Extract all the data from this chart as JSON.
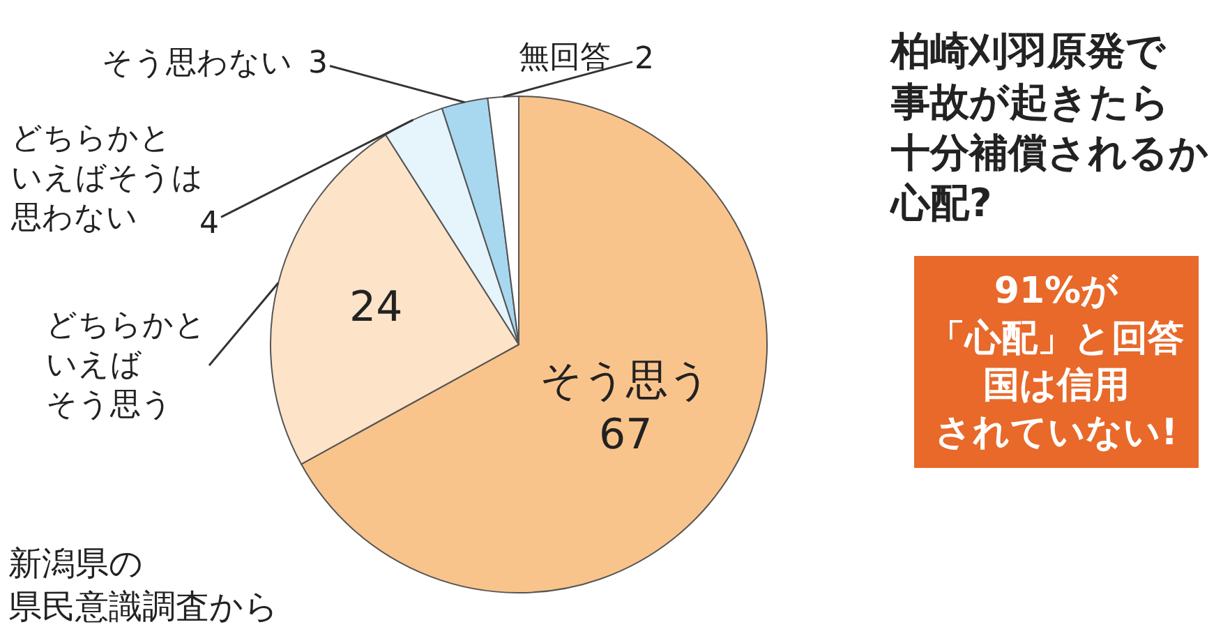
{
  "chart_data": {
    "type": "pie",
    "title": "柏崎刈羽原発で事故が起きたら十分補償されるか心配?",
    "categories": [
      "そう思う",
      "どちらかといえばそう思う",
      "どちらかといえばそうは思わない",
      "そう思わない",
      "無回答"
    ],
    "values": [
      67,
      24,
      4,
      3,
      2
    ],
    "colors": [
      "#f9c48b",
      "#fde3c8",
      "#e6f4fc",
      "#a8d8f0",
      "#ffffff"
    ],
    "data_labels": true,
    "legend": false,
    "annotations": [
      "91%が「心配」と回答国は信用されていない!",
      "新潟県の県民意識調査から"
    ]
  }
}
